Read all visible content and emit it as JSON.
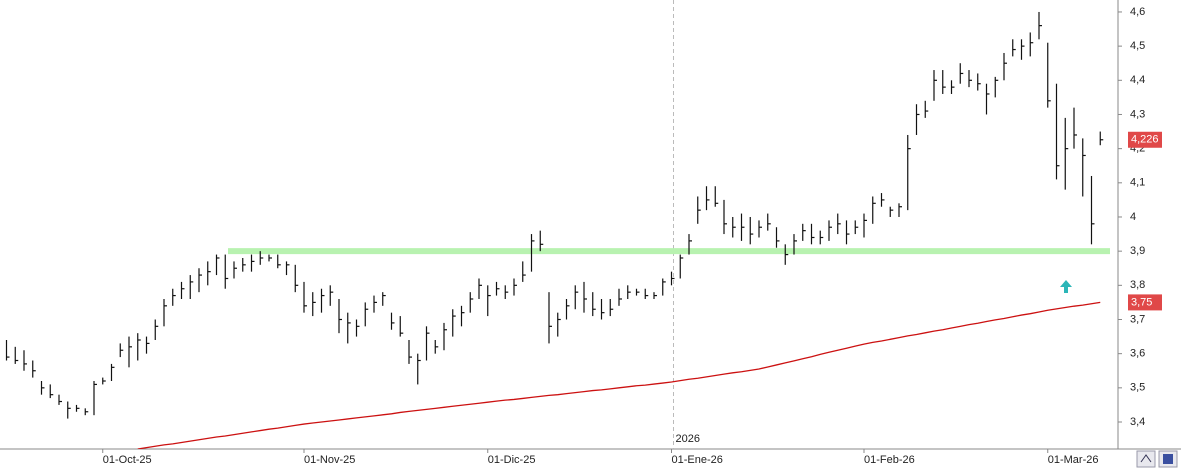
{
  "chart_data": {
    "type": "ohlc",
    "categories": [
      null,
      null,
      null,
      null,
      null,
      null,
      null,
      null,
      null,
      null,
      null,
      "01-Oct-25",
      null,
      null,
      null,
      null,
      null,
      null,
      null,
      null,
      null,
      null,
      null,
      null,
      null,
      null,
      null,
      null,
      null,
      null,
      null,
      null,
      null,
      null,
      "01-Nov-25",
      null,
      null,
      null,
      null,
      null,
      null,
      null,
      null,
      null,
      null,
      null,
      null,
      null,
      null,
      null,
      null,
      null,
      null,
      null,
      null,
      "01-Dic-25",
      null,
      null,
      null,
      null,
      null,
      null,
      null,
      null,
      null,
      null,
      null,
      null,
      null,
      null,
      null,
      null,
      null,
      null,
      null,
      null,
      "01-Ene-26",
      null,
      null,
      null,
      null,
      null,
      null,
      null,
      null,
      null,
      null,
      null,
      null,
      null,
      null,
      null,
      null,
      null,
      null,
      null,
      null,
      null,
      "01-Feb-26",
      null,
      null,
      null,
      null,
      null,
      null,
      null,
      null,
      null,
      null,
      null,
      null,
      null,
      null,
      null,
      null,
      null,
      null,
      null,
      null,
      "01-Mar-26",
      null,
      null,
      null,
      null,
      null,
      null
    ],
    "high": [
      3.64,
      3.62,
      3.61,
      3.58,
      3.52,
      3.51,
      3.48,
      3.46,
      3.45,
      3.44,
      3.52,
      3.53,
      3.57,
      3.63,
      3.65,
      3.66,
      3.65,
      3.7,
      3.76,
      3.79,
      3.81,
      3.83,
      3.85,
      3.87,
      3.89,
      3.89,
      3.87,
      3.88,
      3.89,
      3.9,
      3.89,
      3.89,
      3.87,
      3.86,
      3.81,
      3.78,
      3.79,
      3.8,
      3.76,
      3.72,
      3.7,
      3.75,
      3.77,
      3.78,
      3.72,
      3.71,
      3.64,
      3.6,
      3.68,
      3.64,
      3.69,
      3.73,
      3.74,
      3.78,
      3.82,
      3.8,
      3.81,
      3.8,
      3.82,
      3.87,
      3.95,
      3.96,
      3.78,
      3.72,
      3.76,
      3.8,
      3.81,
      3.78,
      3.76,
      3.76,
      3.79,
      3.8,
      3.79,
      3.79,
      3.78,
      3.82,
      3.84,
      3.89,
      3.95,
      4.06,
      4.09,
      4.09,
      4.05,
      4.0,
      4.01,
      4.0,
      3.99,
      4.01,
      3.97,
      3.92,
      3.95,
      3.98,
      3.98,
      3.96,
      3.99,
      4.01,
      3.99,
      3.99,
      4.01,
      4.06,
      4.07,
      4.03,
      4.04,
      4.24,
      4.33,
      4.34,
      4.43,
      4.43,
      4.4,
      4.45,
      4.43,
      4.42,
      4.39,
      4.41,
      4.48,
      4.52,
      4.52,
      4.54,
      4.6,
      4.51,
      4.39,
      4.29,
      4.32,
      4.23,
      4.12,
      4.25
    ],
    "low": [
      3.58,
      3.57,
      3.55,
      3.53,
      3.48,
      3.47,
      3.45,
      3.41,
      3.43,
      3.42,
      3.42,
      3.51,
      3.52,
      3.59,
      3.56,
      3.58,
      3.6,
      3.64,
      3.68,
      3.74,
      3.76,
      3.76,
      3.78,
      3.8,
      3.83,
      3.79,
      3.82,
      3.84,
      3.84,
      3.86,
      3.87,
      3.85,
      3.83,
      3.78,
      3.72,
      3.71,
      3.72,
      3.74,
      3.66,
      3.63,
      3.65,
      3.68,
      3.72,
      3.74,
      3.67,
      3.65,
      3.57,
      3.51,
      3.58,
      3.6,
      3.61,
      3.65,
      3.68,
      3.72,
      3.76,
      3.71,
      3.77,
      3.76,
      3.77,
      3.81,
      3.84,
      3.9,
      3.63,
      3.65,
      3.7,
      3.73,
      3.72,
      3.71,
      3.7,
      3.71,
      3.74,
      3.76,
      3.77,
      3.76,
      3.76,
      3.77,
      3.8,
      3.82,
      3.89,
      3.98,
      4.02,
      4.03,
      3.95,
      3.94,
      3.93,
      3.92,
      3.94,
      3.96,
      3.91,
      3.86,
      3.89,
      3.93,
      3.92,
      3.92,
      3.93,
      3.95,
      3.92,
      3.95,
      3.94,
      3.98,
      4.03,
      4.0,
      4.0,
      4.02,
      4.24,
      4.29,
      4.34,
      4.36,
      4.36,
      4.39,
      4.38,
      4.37,
      4.3,
      4.35,
      4.4,
      4.47,
      4.46,
      4.47,
      4.52,
      4.32,
      4.11,
      4.08,
      4.2,
      4.06,
      3.92,
      4.21
    ],
    "close": [
      3.59,
      3.58,
      3.57,
      3.55,
      3.5,
      3.48,
      3.46,
      3.44,
      3.44,
      3.43,
      3.51,
      3.52,
      3.56,
      3.61,
      3.62,
      3.64,
      3.63,
      3.68,
      3.74,
      3.77,
      3.79,
      3.81,
      3.83,
      3.84,
      3.88,
      3.82,
      3.85,
      3.86,
      3.87,
      3.88,
      3.88,
      3.86,
      3.86,
      3.8,
      3.74,
      3.75,
      3.77,
      3.78,
      3.7,
      3.69,
      3.68,
      3.73,
      3.75,
      3.77,
      3.69,
      3.66,
      3.59,
      3.58,
      3.66,
      3.62,
      3.67,
      3.71,
      3.72,
      3.76,
      3.8,
      3.77,
      3.79,
      3.78,
      3.8,
      3.83,
      3.93,
      3.92,
      3.68,
      3.7,
      3.74,
      3.78,
      3.76,
      3.73,
      3.72,
      3.73,
      3.76,
      3.78,
      3.78,
      3.77,
      3.77,
      3.81,
      3.82,
      3.88,
      3.93,
      4.02,
      4.05,
      4.04,
      3.98,
      3.97,
      3.97,
      3.95,
      3.97,
      3.98,
      3.93,
      3.89,
      3.93,
      3.96,
      3.94,
      3.94,
      3.97,
      3.98,
      3.95,
      3.97,
      3.99,
      4.04,
      4.05,
      4.02,
      4.03,
      4.2,
      4.3,
      4.31,
      4.4,
      4.38,
      4.38,
      4.42,
      4.4,
      4.39,
      4.36,
      4.4,
      4.45,
      4.49,
      4.5,
      4.51,
      4.56,
      4.34,
      4.15,
      4.2,
      4.24,
      4.18,
      3.98,
      4.226
    ],
    "bar_color": "#111111",
    "overlays": [
      {
        "color": "#cc1111",
        "values": [
          null,
          null,
          null,
          null,
          null,
          null,
          null,
          null,
          null,
          null,
          null,
          null,
          null,
          null,
          null,
          3.321,
          3.325,
          3.329,
          3.333,
          3.336,
          3.34,
          3.344,
          3.348,
          3.352,
          3.356,
          3.359,
          3.363,
          3.367,
          3.371,
          3.375,
          3.379,
          3.382,
          3.386,
          3.39,
          3.394,
          3.397,
          3.4,
          3.403,
          3.406,
          3.409,
          3.412,
          3.415,
          3.418,
          3.421,
          3.424,
          3.428,
          3.431,
          3.434,
          3.437,
          3.44,
          3.443,
          3.446,
          3.449,
          3.452,
          3.455,
          3.458,
          3.461,
          3.464,
          3.466,
          3.469,
          3.472,
          3.475,
          3.478,
          3.48,
          3.483,
          3.486,
          3.489,
          3.492,
          3.494,
          3.497,
          3.5,
          3.503,
          3.506,
          3.508,
          3.511,
          3.514,
          3.517,
          3.521,
          3.525,
          3.528,
          3.532,
          3.536,
          3.54,
          3.544,
          3.547,
          3.551,
          3.555,
          3.561,
          3.567,
          3.573,
          3.579,
          3.585,
          3.591,
          3.598,
          3.604,
          3.61,
          3.616,
          3.622,
          3.628,
          3.633,
          3.637,
          3.642,
          3.647,
          3.652,
          3.656,
          3.661,
          3.666,
          3.67,
          3.675,
          3.68,
          3.685,
          3.689,
          3.694,
          3.699,
          3.703,
          3.708,
          3.713,
          3.717,
          3.722,
          3.727,
          3.731,
          3.735,
          3.739,
          3.742,
          3.746,
          3.75
        ]
      }
    ],
    "hlines": [
      {
        "value": 3.9,
        "color": "#b8f2b0"
      }
    ],
    "price_tags": [
      {
        "value": 4.226,
        "label": "4,226",
        "color": "#e04848"
      },
      {
        "value": 3.75,
        "label": "3,75",
        "color": "#e04848"
      }
    ],
    "year_marker": {
      "category": 76,
      "label": "2026"
    },
    "ylim": [
      3.321,
      4.635
    ],
    "yticks": [
      {
        "value": 3.4,
        "label": "3,4"
      },
      {
        "value": 3.5,
        "label": "3,5"
      },
      {
        "value": 3.6,
        "label": "3,6"
      },
      {
        "value": 3.7,
        "label": "3,7"
      },
      {
        "value": 3.8,
        "label": "3,8"
      },
      {
        "value": 3.9,
        "label": "3,9"
      },
      4,
      {
        "value": 4.1,
        "label": "4,1"
      },
      {
        "value": 4.2,
        "label": "4,2"
      },
      {
        "value": 4.3,
        "label": "4,3"
      },
      {
        "value": 4.4,
        "label": "4,4"
      },
      {
        "value": 4.5,
        "label": "4,5"
      },
      {
        "value": 4.6,
        "label": "4,6"
      }
    ]
  }
}
